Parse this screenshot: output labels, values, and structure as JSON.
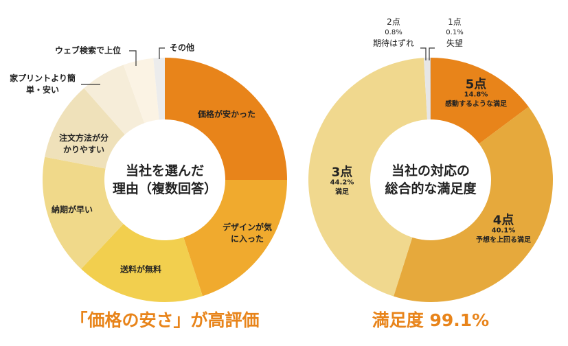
{
  "chart_data": [
    {
      "type": "pie",
      "donut": true,
      "center_label": "当社を選んだ\n理由（複数回答）",
      "title": "「価格の安さ」が高評価",
      "slices": [
        {
          "label": "価格が安かった",
          "value": 25,
          "color": "#E8841A"
        },
        {
          "label": "デザインが気に入った",
          "value": 20,
          "color": "#F0AA2E"
        },
        {
          "label": "送料が無料",
          "value": 17,
          "color": "#F2CF4E"
        },
        {
          "label": "納期が早い",
          "value": 16,
          "color": "#F0D98A"
        },
        {
          "label": "注文方法が分かりやすい",
          "value": 10.5,
          "color": "#EFE1BA"
        },
        {
          "label": "家プリントより簡単・安い",
          "value": 6,
          "color": "#F6EDD9"
        },
        {
          "label": "ウェブ検索で上位",
          "value": 4,
          "color": "#FBF3E4"
        },
        {
          "label": "その他",
          "value": 1.5,
          "color": "#ECECEC"
        }
      ]
    },
    {
      "type": "pie",
      "donut": true,
      "center_label": "当社の対応の\n総合的な満足度",
      "title": "満足度 99.1%",
      "slices": [
        {
          "label": "5点",
          "pct": "14.8%",
          "desc": "感動するような満足",
          "value": 14.8,
          "color": "#E8841A"
        },
        {
          "label": "4点",
          "pct": "40.1%",
          "desc": "予想を上回る満足",
          "value": 40.1,
          "color": "#E6A93C"
        },
        {
          "label": "3点",
          "pct": "44.2%",
          "desc": "満足",
          "value": 44.2,
          "color": "#F0D88E"
        },
        {
          "label": "2点",
          "pct": "0.8%",
          "desc": "期待はずれ",
          "value": 0.8,
          "color": "#E6E6E6"
        },
        {
          "label": "1点",
          "pct": "0.1%",
          "desc": "失望",
          "value": 0.1,
          "color": "#D0D0D0"
        }
      ]
    }
  ]
}
